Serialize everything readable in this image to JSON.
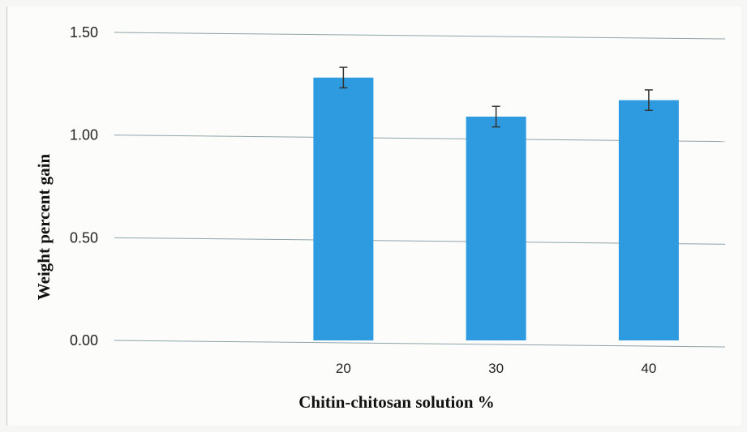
{
  "chart_data": {
    "type": "bar",
    "title": "",
    "xlabel": "Chitin-chitosan solution %",
    "ylabel": "Weight percent gain",
    "categories": [
      "",
      "20",
      "30",
      "40"
    ],
    "values": [
      null,
      1.28,
      1.09,
      1.17
    ],
    "errors": [
      null,
      0.05,
      0.05,
      0.05
    ],
    "ylim": [
      0,
      1.5
    ],
    "yticks": [
      "0.00",
      "0.50",
      "1.00",
      "1.50"
    ],
    "ytick_values": [
      0,
      0.5,
      1.0,
      1.5
    ],
    "grid": true,
    "bar_color": "#2e9be0",
    "error_color": "#333333",
    "grid_color": "#8fa3a8"
  }
}
